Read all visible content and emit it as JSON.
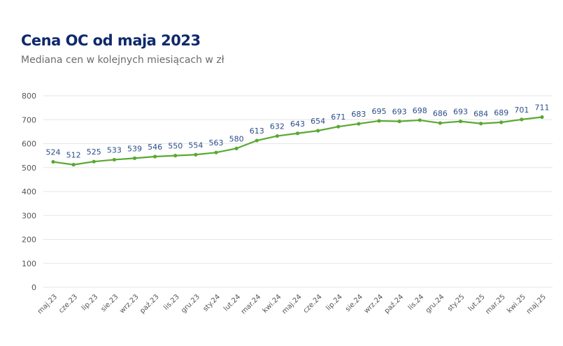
{
  "chart_data": {
    "type": "line",
    "title": "Cena OC od maja 2023",
    "subtitle": "Mediana cen w kolejnych miesiącach w zł",
    "categories": [
      "maj.23",
      "cze.23",
      "lip.23",
      "sie.23",
      "wrz.23",
      "paź.23",
      "lis.23",
      "gru.23",
      "sty.24",
      "lut.24",
      "mar.24",
      "kwi.24",
      "maj.24",
      "cze.24",
      "lip.24",
      "sie.24",
      "wrz.24",
      "paź.24",
      "lis.24",
      "gru.24",
      "sty.25",
      "lut.25",
      "mar.25",
      "kwi.25",
      "maj.25"
    ],
    "values": [
      524,
      512,
      525,
      533,
      539,
      546,
      550,
      554,
      563,
      580,
      613,
      632,
      643,
      654,
      671,
      683,
      695,
      693,
      698,
      686,
      693,
      684,
      689,
      701,
      711
    ],
    "ylim": [
      0,
      800
    ],
    "yticks": [
      0,
      100,
      200,
      300,
      400,
      500,
      600,
      700,
      800
    ],
    "grid": true,
    "legend": "none",
    "colors": {
      "line": "#5aa832",
      "label": "#2b4d8c",
      "title": "#0f2a6b",
      "grid": "#e6e6e6",
      "axis_text": "#555555"
    }
  }
}
